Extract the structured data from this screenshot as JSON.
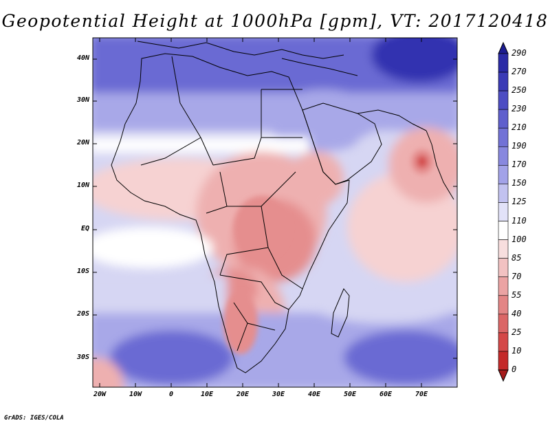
{
  "title": "Geopotential Height at 1000hPa [gpm], VT: 2017120418",
  "credit": "GrADS: IGES/COLA",
  "lat_labels": [
    "40N",
    "30N",
    "20N",
    "10N",
    "EQ",
    "10S",
    "20S",
    "30S"
  ],
  "lon_labels": [
    "20W",
    "10W",
    "0",
    "10E",
    "20E",
    "30E",
    "40E",
    "50E",
    "60E",
    "70E"
  ],
  "colorbar": {
    "labels": [
      "290",
      "270",
      "250",
      "230",
      "210",
      "190",
      "170",
      "150",
      "125",
      "110",
      "100",
      "85",
      "70",
      "55",
      "40",
      "25",
      "10",
      "0"
    ],
    "colors": [
      "#1c1c92",
      "#2a2aa6",
      "#3a3ab6",
      "#4d4dc3",
      "#5f5fcd",
      "#7272d6",
      "#8888df",
      "#a2a2e8",
      "#c2c2f0",
      "#e2e2f8",
      "#ffffff",
      "#f8dede",
      "#f2c2c2",
      "#eba3a3",
      "#e38585",
      "#db6666",
      "#d44848",
      "#c42a2a",
      "#a51a1a"
    ]
  },
  "map_colors": {
    "deep_blue": "#3030b0",
    "mid_blue": "#6a6ad3",
    "light_blue": "#a8a8e8",
    "pale_blue": "#d6d6f3",
    "white": "#ffffff",
    "pale_red": "#f6d2d2",
    "light_red": "#eeb0b0",
    "mid_red": "#e58e8e",
    "deep_red": "#d45050"
  }
}
